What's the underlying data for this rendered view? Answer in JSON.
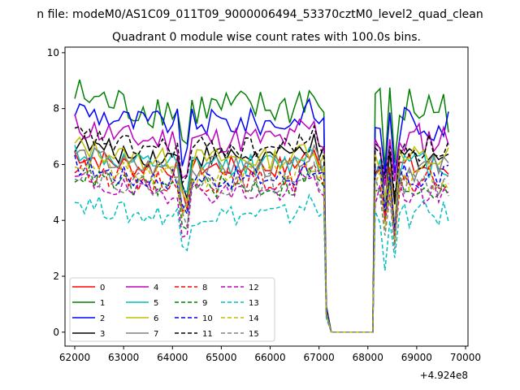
{
  "figure": {
    "suptitle": "n file: modeM0/AS1C09_011T09_9000006494_53370cztM0_level2_quad_clean",
    "title": "Quadrant 0 module wise count rates with 100.0s bins.",
    "x_offset_label": "+4.924e8"
  },
  "chart_data": {
    "type": "line",
    "title": "Quadrant 0 module wise count rates with 100.0s bins.",
    "xlabel": "",
    "ylabel": "",
    "x_offset": 492400000,
    "xlim": [
      61800,
      70050
    ],
    "ylim": [
      -0.5,
      10.2
    ],
    "xticks": [
      62000,
      63000,
      64000,
      65000,
      66000,
      67000,
      68000,
      69000,
      70000
    ],
    "xtick_labels": [
      "62000",
      "63000",
      "64000",
      "65000",
      "66000",
      "67000",
      "68000",
      "69000",
      "70000"
    ],
    "yticks": [
      0,
      2,
      4,
      6,
      8,
      10
    ],
    "ytick_labels": [
      "0",
      "2",
      "4",
      "6",
      "8",
      "10"
    ],
    "grid": false,
    "legend_position": "lower-left",
    "legend_columns": 5,
    "gti": [
      [
        62000,
        67100
      ],
      [
        68150,
        69650
      ]
    ],
    "gap": [
      [
        67100,
        68150
      ]
    ],
    "series": [
      {
        "name": "0",
        "color": "#ff0000",
        "style": "solid",
        "base": 5.9,
        "amp": 0.4
      },
      {
        "name": "1",
        "color": "#008000",
        "style": "solid",
        "base": 8.0,
        "amp": 0.7
      },
      {
        "name": "2",
        "color": "#0000ff",
        "style": "solid",
        "base": 7.5,
        "amp": 0.5
      },
      {
        "name": "3",
        "color": "#000000",
        "style": "solid",
        "base": 6.3,
        "amp": 0.4
      },
      {
        "name": "4",
        "color": "#bf00bf",
        "style": "solid",
        "base": 6.9,
        "amp": 0.5
      },
      {
        "name": "5",
        "color": "#00bfbf",
        "style": "solid",
        "base": 6.0,
        "amp": 0.4
      },
      {
        "name": "6",
        "color": "#bfbf00",
        "style": "solid",
        "base": 6.2,
        "amp": 0.4
      },
      {
        "name": "7",
        "color": "#808080",
        "style": "solid",
        "base": 5.9,
        "amp": 0.4
      },
      {
        "name": "8",
        "color": "#ff0000",
        "style": "dashed",
        "base": 5.4,
        "amp": 0.4
      },
      {
        "name": "9",
        "color": "#008000",
        "style": "dashed",
        "base": 5.2,
        "amp": 0.4
      },
      {
        "name": "10",
        "color": "#0000ff",
        "style": "dashed",
        "base": 5.5,
        "amp": 0.4
      },
      {
        "name": "11",
        "color": "#000000",
        "style": "dashed",
        "base": 6.6,
        "amp": 0.4
      },
      {
        "name": "12",
        "color": "#bf00bf",
        "style": "dashed",
        "base": 5.0,
        "amp": 0.4
      },
      {
        "name": "13",
        "color": "#00bfbf",
        "style": "dashed",
        "base": 4.2,
        "amp": 0.4
      },
      {
        "name": "14",
        "color": "#bfbf00",
        "style": "dashed",
        "base": 5.6,
        "amp": 0.4
      },
      {
        "name": "15",
        "color": "#808080",
        "style": "dashed",
        "base": 5.3,
        "amp": 0.4
      }
    ]
  }
}
